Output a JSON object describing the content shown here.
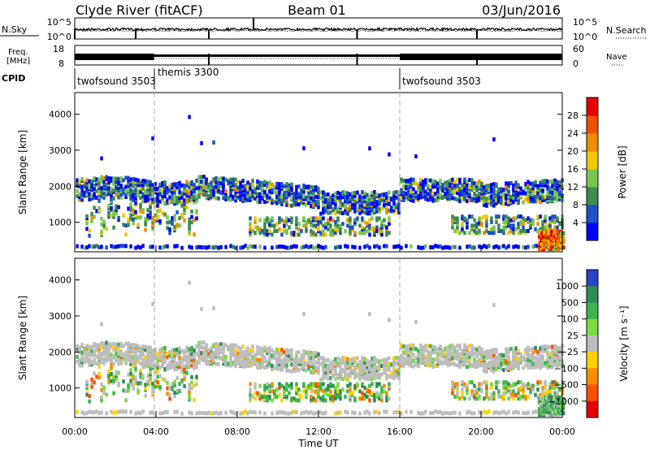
{
  "header": {
    "station": "Clyde River (fitACF)",
    "beam": "Beam 01",
    "date": "03/Jun/2016"
  },
  "aux_panels": {
    "nsky_label": "N.Sky",
    "nsearch_label": "N.Search",
    "nsky_ticks": [
      "10^5",
      "10^0"
    ],
    "nsearch_ticks": [
      "10^5",
      "10^0"
    ],
    "freq_label_1": "Freq.",
    "freq_label_2": "[MHz]",
    "freq_ticks": [
      "18",
      "8"
    ],
    "nave_label": "Nave",
    "nave_ticks": [
      "60",
      "0"
    ],
    "cpid_label": "CPID",
    "cpid_segments": [
      {
        "label": "twofsound 3503",
        "start_h": 0.0,
        "end_h": 3.9
      },
      {
        "label": "themis 3300",
        "start_h": 3.9,
        "end_h": 16.0
      },
      {
        "label": "twofsound 3503",
        "start_h": 16.0,
        "end_h": 24.0
      }
    ]
  },
  "chart_data": [
    {
      "type": "heatmap",
      "title": "",
      "ylabel": "Slant Range [km]",
      "xlabel": "",
      "xlim": [
        0,
        24
      ],
      "ylim": [
        180,
        4600
      ],
      "yticks": [
        "1000",
        "2000",
        "3000",
        "4000"
      ],
      "colorbar": {
        "label": "Power [dB]",
        "range": [
          0,
          32
        ],
        "ticks": [
          "4",
          "8",
          "12",
          "16",
          "20",
          "24",
          "28"
        ],
        "colors": [
          "#0000ff",
          "#1e50c8",
          "#3c8c50",
          "#78c850",
          "#f0c800",
          "#f08c00",
          "#f05000",
          "#e60000"
        ]
      }
    },
    {
      "type": "heatmap",
      "title": "",
      "ylabel": "Slant Range [km]",
      "xlabel": "Time UT",
      "xlim": [
        0,
        24
      ],
      "ylim": [
        180,
        4600
      ],
      "yticks": [
        "1000",
        "2000",
        "3000",
        "4000"
      ],
      "xticks": [
        "00:00",
        "04:00",
        "08:00",
        "12:00",
        "16:00",
        "20:00",
        "00:00"
      ],
      "colorbar": {
        "label": "Velocity [m s⁻¹]",
        "ticks": [
          "1000",
          "500",
          "100",
          "25",
          "−25",
          "−100",
          "−500",
          "−1000"
        ],
        "colors": [
          "#2846c8",
          "#2e8b57",
          "#3cb450",
          "#78dc3c",
          "#bebebe",
          "#ffd200",
          "#ff8c00",
          "#ff5000",
          "#e60000"
        ]
      }
    }
  ]
}
